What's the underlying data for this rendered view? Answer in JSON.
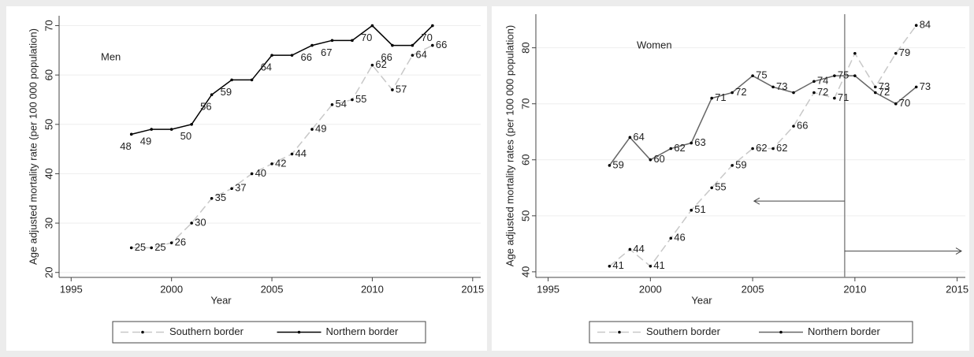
{
  "chart_data": [
    {
      "type": "line",
      "annotation": "Men",
      "xlabel": "Year",
      "ylabel": "Age adjusted mortality rate (per 100 000 population)",
      "x": [
        1998,
        1999,
        2000,
        2001,
        2002,
        2003,
        2004,
        2005,
        2006,
        2007,
        2008,
        2009,
        2010,
        2011,
        2012,
        2013
      ],
      "xlim": [
        1994.4,
        2015.4
      ],
      "xticks": [
        1995,
        2000,
        2005,
        2010,
        2015
      ],
      "ylim": [
        19,
        72
      ],
      "yticks": [
        20,
        30,
        40,
        50,
        60,
        70
      ],
      "grid": true,
      "series": [
        {
          "name": "Southern border",
          "color": "#c8c8c8",
          "dashed": true,
          "values": [
            25,
            25,
            26,
            30,
            35,
            37,
            40,
            42,
            44,
            49,
            54,
            55,
            62,
            57,
            64,
            66
          ],
          "value_labels": [
            "25",
            "25",
            "26",
            "30",
            "35",
            "37",
            "40",
            "42",
            "44",
            "49",
            "54",
            "55",
            "62",
            "57",
            "64",
            "66"
          ]
        },
        {
          "name": "Northern border",
          "color": "#000000",
          "dashed": false,
          "values": [
            48,
            49,
            49,
            50,
            56,
            59,
            59,
            64,
            64,
            66,
            67,
            67,
            70,
            66,
            66,
            70
          ],
          "value_labels": [
            "48",
            "49",
            null,
            "50",
            "56",
            "59",
            null,
            "64",
            null,
            "66",
            "67",
            null,
            "70",
            "66",
            null,
            "70"
          ]
        }
      ]
    },
    {
      "type": "line",
      "annotation": "Women",
      "xlabel": "Year",
      "ylabel": "Age adjusted mortality rates (per 100 000 population)",
      "x": [
        1998,
        1999,
        2000,
        2001,
        2002,
        2003,
        2004,
        2005,
        2006,
        2007,
        2008,
        2009,
        2010,
        2011,
        2012,
        2013
      ],
      "xlim": [
        1994.4,
        2015.4
      ],
      "xticks": [
        1995,
        2000,
        2005,
        2010,
        2015
      ],
      "ylim": [
        39,
        86
      ],
      "yticks": [
        40,
        50,
        60,
        70,
        80
      ],
      "grid": true,
      "vline": 2009.5,
      "series": [
        {
          "name": "Southern border",
          "color": "#c8c8c8",
          "dashed": true,
          "values": [
            41,
            44,
            41,
            46,
            51,
            55,
            59,
            62,
            62,
            66,
            72,
            71,
            79,
            73,
            79,
            84
          ],
          "value_labels": [
            "41",
            "44",
            "41",
            "46",
            "51",
            "55",
            "59",
            "62",
            "62",
            "66",
            "72",
            "71",
            null,
            "73",
            "79",
            "84"
          ]
        },
        {
          "name": "Northern border",
          "color": "#666666",
          "dashed": false,
          "values": [
            59,
            64,
            60,
            62,
            63,
            71,
            72,
            75,
            73,
            72,
            74,
            75,
            75,
            72,
            70,
            73
          ],
          "value_labels": [
            "59",
            "64",
            "60",
            "62",
            "63",
            "71",
            "72",
            "75",
            "73",
            null,
            "74",
            "75",
            null,
            "72",
            "70",
            "73"
          ]
        }
      ]
    }
  ]
}
